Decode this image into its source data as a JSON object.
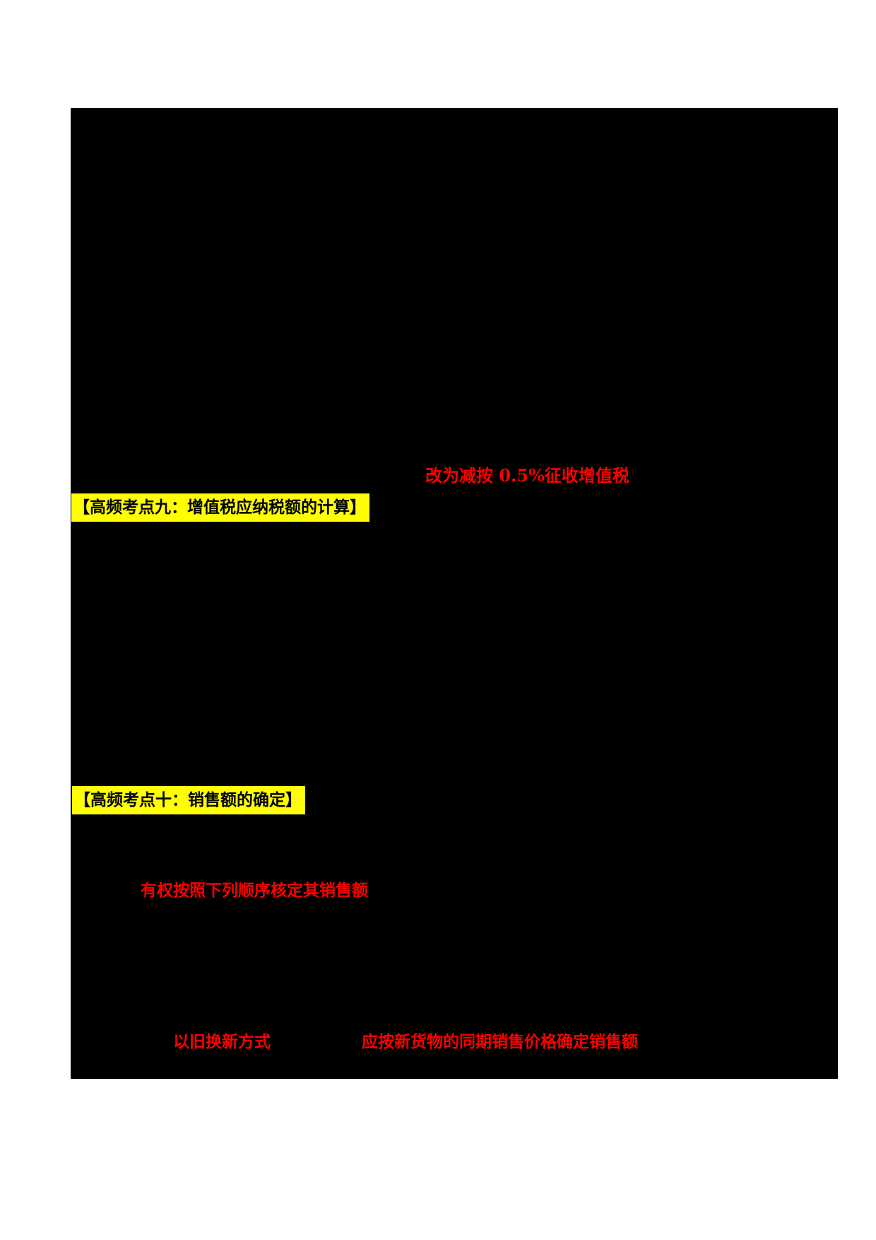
{
  "page": {
    "background_color": "#ffffff",
    "body_fill_color": "#000000"
  },
  "colors": {
    "emphasis_red": "#ff0000",
    "highlight_yellow": "#ffff00",
    "heading_text": "#000000"
  },
  "content": {
    "red_note_collection_rate": "改为减按 0.5%征收增值税",
    "heading_key_point_9": "【高频考点九：增值税应纳税额的计算】",
    "heading_key_point_10": "【高频考点十：销售额的确定】",
    "red_note_assess_sales_order": "有权按照下列顺序核定其销售额",
    "red_note_trade_in": "以旧换新方式",
    "red_note_new_goods_price": "应按新货物的同期销售价格确定销售额"
  }
}
